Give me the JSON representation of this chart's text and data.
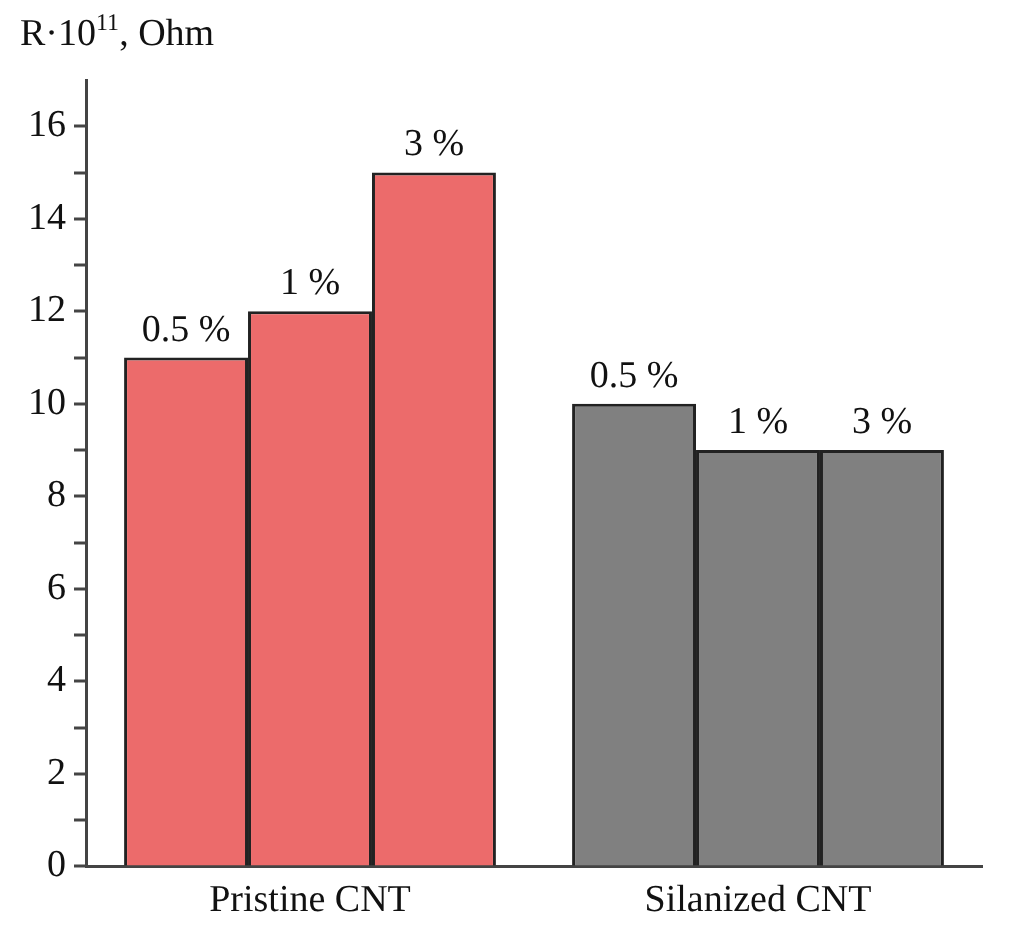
{
  "chart_data": {
    "type": "bar",
    "ylabel": "R·10$^{11}$, Ohm",
    "categories": [
      "Pristine CNT",
      "Silanized CNT"
    ],
    "series": [
      {
        "name": "0.5 %",
        "colors": [
          "#ec6b6b",
          "#808080"
        ],
        "values": [
          11,
          10
        ]
      },
      {
        "name": "1 %",
        "colors": [
          "#ec6b6b",
          "#808080"
        ],
        "values": [
          12,
          9
        ]
      },
      {
        "name": "3 %",
        "colors": [
          "#ec6b6b",
          "#808080"
        ],
        "values": [
          15,
          9
        ]
      }
    ],
    "ylim": [
      0,
      17
    ],
    "yticks": [
      0,
      {
        "value": 1,
        "label": null
      },
      2,
      {
        "value": 3,
        "label": null
      },
      4,
      {
        "value": 5,
        "label": null
      },
      6,
      {
        "value": 7,
        "label": null
      },
      8,
      {
        "value": 9,
        "label": null
      },
      10,
      {
        "value": 11,
        "label": null
      },
      12,
      {
        "value": 13,
        "label": null
      },
      14,
      {
        "value": 15,
        "label": null
      },
      16
    ],
    "grid": false,
    "legend": false
  }
}
